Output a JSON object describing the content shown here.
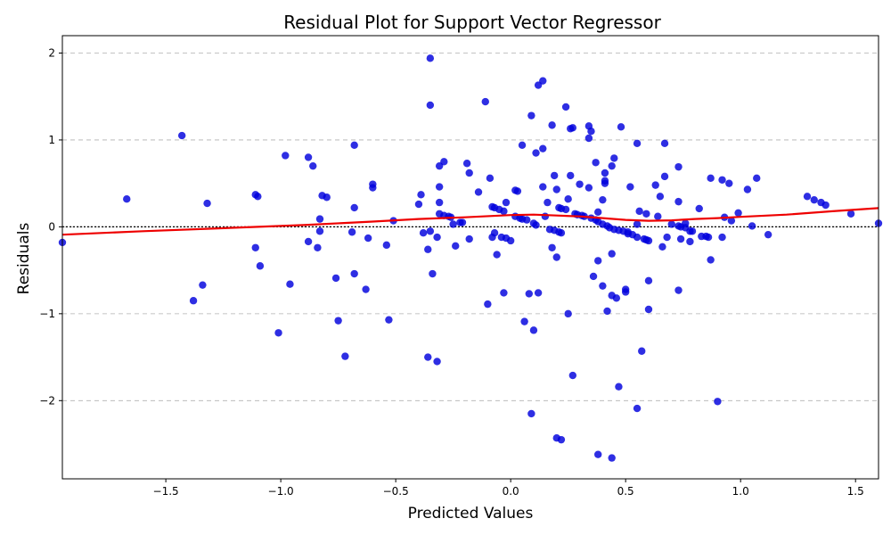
{
  "chart_data": {
    "type": "scatter",
    "title": "Residual Plot for Support Vector Regressor",
    "xlabel": "Predicted Values",
    "ylabel": "Residuals",
    "xlim": [
      -1.95,
      1.6
    ],
    "ylim": [
      -2.9,
      2.2
    ],
    "xticks": [
      -1.5,
      -1.0,
      -0.5,
      0.0,
      0.5,
      1.0,
      1.5
    ],
    "xtick_labels": [
      "−1.5",
      "−1.0",
      "−0.5",
      "0.0",
      "0.5",
      "1.0",
      "1.5"
    ],
    "yticks": [
      -2,
      -1,
      0,
      1,
      2
    ],
    "ytick_labels": [
      "−2",
      "−1",
      "0",
      "1",
      "2"
    ],
    "grid": "y-dashed",
    "point_color": "#0000dd",
    "trend_color": "#ee0000",
    "zero_line_color": "#000000",
    "points": [
      [
        -1.95,
        -0.18
      ],
      [
        -1.67,
        0.32
      ],
      [
        -1.43,
        1.05
      ],
      [
        -1.38,
        -0.85
      ],
      [
        -1.34,
        -0.67
      ],
      [
        -1.32,
        0.27
      ],
      [
        -1.11,
        0.37
      ],
      [
        -1.1,
        0.35
      ],
      [
        -1.11,
        -0.24
      ],
      [
        -1.09,
        -0.45
      ],
      [
        -1.01,
        -1.22
      ],
      [
        -0.98,
        0.82
      ],
      [
        -0.96,
        -0.66
      ],
      [
        -0.88,
        0.8
      ],
      [
        -0.86,
        0.7
      ],
      [
        -0.88,
        -0.17
      ],
      [
        -0.83,
        0.09
      ],
      [
        -0.83,
        -0.05
      ],
      [
        -0.84,
        -0.24
      ],
      [
        -0.82,
        0.36
      ],
      [
        -0.8,
        0.34
      ],
      [
        -0.76,
        -0.59
      ],
      [
        -0.75,
        -1.08
      ],
      [
        -0.72,
        -1.49
      ],
      [
        -0.68,
        0.94
      ],
      [
        -0.68,
        0.22
      ],
      [
        -0.69,
        -0.06
      ],
      [
        -0.68,
        -0.54
      ],
      [
        -0.63,
        -0.72
      ],
      [
        -0.62,
        -0.13
      ],
      [
        -0.6,
        0.49
      ],
      [
        -0.6,
        0.45
      ],
      [
        -0.54,
        -0.21
      ],
      [
        -0.53,
        -1.07
      ],
      [
        -0.51,
        0.07
      ],
      [
        -0.4,
        0.26
      ],
      [
        -0.39,
        0.37
      ],
      [
        -0.38,
        -0.07
      ],
      [
        -0.36,
        -0.26
      ],
      [
        -0.36,
        -1.5
      ],
      [
        -0.35,
        1.94
      ],
      [
        -0.35,
        1.4
      ],
      [
        -0.35,
        -0.05
      ],
      [
        -0.34,
        -0.54
      ],
      [
        -0.32,
        -0.12
      ],
      [
        -0.32,
        -1.55
      ],
      [
        -0.31,
        0.46
      ],
      [
        -0.31,
        0.28
      ],
      [
        -0.31,
        0.15
      ],
      [
        -0.31,
        0.7
      ],
      [
        -0.29,
        0.75
      ],
      [
        -0.29,
        0.13
      ],
      [
        -0.27,
        0.12
      ],
      [
        -0.26,
        0.11
      ],
      [
        -0.25,
        0.03
      ],
      [
        -0.24,
        -0.22
      ],
      [
        -0.22,
        0.05
      ],
      [
        -0.21,
        0.05
      ],
      [
        -0.19,
        0.73
      ],
      [
        -0.18,
        0.62
      ],
      [
        -0.18,
        -0.14
      ],
      [
        -0.14,
        0.4
      ],
      [
        -0.11,
        1.44
      ],
      [
        -0.1,
        -0.89
      ],
      [
        -0.09,
        0.56
      ],
      [
        -0.08,
        0.23
      ],
      [
        -0.07,
        0.22
      ],
      [
        -0.08,
        -0.12
      ],
      [
        -0.07,
        -0.07
      ],
      [
        -0.06,
        -0.32
      ],
      [
        -0.05,
        0.2
      ],
      [
        -0.04,
        -0.12
      ],
      [
        -0.03,
        -0.76
      ],
      [
        -0.02,
        0.28
      ],
      [
        -0.03,
        0.18
      ],
      [
        -0.02,
        -0.13
      ],
      [
        0.0,
        -0.16
      ],
      [
        0.02,
        0.42
      ],
      [
        0.03,
        0.41
      ],
      [
        0.02,
        0.12
      ],
      [
        0.04,
        0.1
      ],
      [
        0.05,
        0.94
      ],
      [
        0.05,
        0.09
      ],
      [
        0.07,
        0.08
      ],
      [
        0.06,
        -1.09
      ],
      [
        0.08,
        -0.77
      ],
      [
        0.09,
        1.28
      ],
      [
        0.09,
        -2.15
      ],
      [
        0.1,
        -1.19
      ],
      [
        0.11,
        0.85
      ],
      [
        0.1,
        0.04
      ],
      [
        0.11,
        0.02
      ],
      [
        0.12,
        1.63
      ],
      [
        0.12,
        -0.76
      ],
      [
        0.14,
        1.68
      ],
      [
        0.14,
        0.9
      ],
      [
        0.14,
        0.46
      ],
      [
        0.15,
        0.12
      ],
      [
        0.16,
        0.28
      ],
      [
        0.17,
        -0.03
      ],
      [
        0.18,
        1.17
      ],
      [
        0.18,
        -0.24
      ],
      [
        0.19,
        0.59
      ],
      [
        0.19,
        -0.04
      ],
      [
        0.2,
        -0.35
      ],
      [
        0.2,
        0.43
      ],
      [
        0.21,
        -0.06
      ],
      [
        0.21,
        0.22
      ],
      [
        0.2,
        -2.43
      ],
      [
        0.22,
        -2.45
      ],
      [
        0.22,
        -0.07
      ],
      [
        0.22,
        0.21
      ],
      [
        0.24,
        0.2
      ],
      [
        0.24,
        1.38
      ],
      [
        0.25,
        0.32
      ],
      [
        0.25,
        -1.0
      ],
      [
        0.26,
        0.59
      ],
      [
        0.26,
        1.13
      ],
      [
        0.27,
        1.14
      ],
      [
        0.27,
        -1.71
      ],
      [
        0.28,
        0.15
      ],
      [
        0.29,
        0.14
      ],
      [
        0.3,
        0.49
      ],
      [
        0.31,
        0.13
      ],
      [
        0.32,
        0.12
      ],
      [
        0.34,
        0.45
      ],
      [
        0.34,
        1.16
      ],
      [
        0.35,
        1.1
      ],
      [
        0.34,
        1.02
      ],
      [
        0.35,
        0.1
      ],
      [
        0.36,
        -0.57
      ],
      [
        0.37,
        0.08
      ],
      [
        0.37,
        0.74
      ],
      [
        0.38,
        0.06
      ],
      [
        0.38,
        0.17
      ],
      [
        0.38,
        -0.39
      ],
      [
        0.38,
        -2.62
      ],
      [
        0.4,
        0.31
      ],
      [
        0.4,
        0.03
      ],
      [
        0.41,
        0.62
      ],
      [
        0.41,
        0.5
      ],
      [
        0.41,
        0.53
      ],
      [
        0.4,
        -0.68
      ],
      [
        0.42,
        -0.97
      ],
      [
        0.42,
        0.01
      ],
      [
        0.43,
        -0.01
      ],
      [
        0.44,
        0.7
      ],
      [
        0.44,
        -0.31
      ],
      [
        0.44,
        -0.79
      ],
      [
        0.44,
        -2.66
      ],
      [
        0.45,
        0.79
      ],
      [
        0.45,
        -0.03
      ],
      [
        0.46,
        -0.82
      ],
      [
        0.47,
        -0.04
      ],
      [
        0.47,
        -1.84
      ],
      [
        0.48,
        1.15
      ],
      [
        0.49,
        -0.05
      ],
      [
        0.5,
        -0.75
      ],
      [
        0.5,
        -0.72
      ],
      [
        0.51,
        -0.06
      ],
      [
        0.51,
        -0.08
      ],
      [
        0.52,
        0.46
      ],
      [
        0.53,
        -0.09
      ],
      [
        0.55,
        0.96
      ],
      [
        0.55,
        0.03
      ],
      [
        0.55,
        -0.12
      ],
      [
        0.55,
        -2.09
      ],
      [
        0.56,
        0.18
      ],
      [
        0.57,
        -1.43
      ],
      [
        0.58,
        -0.14
      ],
      [
        0.59,
        0.15
      ],
      [
        0.59,
        -0.15
      ],
      [
        0.6,
        -0.62
      ],
      [
        0.6,
        -0.95
      ],
      [
        0.6,
        -0.16
      ],
      [
        0.63,
        0.48
      ],
      [
        0.64,
        0.12
      ],
      [
        0.65,
        0.35
      ],
      [
        0.66,
        -0.23
      ],
      [
        0.67,
        0.58
      ],
      [
        0.67,
        0.96
      ],
      [
        0.68,
        -0.12
      ],
      [
        0.7,
        0.03
      ],
      [
        0.73,
        0.69
      ],
      [
        0.73,
        0.29
      ],
      [
        0.73,
        0.01
      ],
      [
        0.73,
        -0.73
      ],
      [
        0.74,
        -0.0
      ],
      [
        0.74,
        -0.14
      ],
      [
        0.76,
        0.04
      ],
      [
        0.76,
        -0.01
      ],
      [
        0.78,
        -0.05
      ],
      [
        0.78,
        -0.17
      ],
      [
        0.79,
        -0.05
      ],
      [
        0.82,
        0.21
      ],
      [
        0.83,
        -0.11
      ],
      [
        0.85,
        -0.11
      ],
      [
        0.86,
        -0.12
      ],
      [
        0.87,
        0.56
      ],
      [
        0.87,
        -0.38
      ],
      [
        0.9,
        -2.01
      ],
      [
        0.92,
        0.54
      ],
      [
        0.92,
        -0.12
      ],
      [
        0.93,
        0.11
      ],
      [
        0.95,
        0.5
      ],
      [
        0.96,
        0.07
      ],
      [
        0.99,
        0.16
      ],
      [
        1.03,
        0.43
      ],
      [
        1.05,
        0.01
      ],
      [
        1.07,
        0.56
      ],
      [
        1.12,
        -0.09
      ],
      [
        1.29,
        0.35
      ],
      [
        1.32,
        0.31
      ],
      [
        1.35,
        0.28
      ],
      [
        1.37,
        0.25
      ],
      [
        1.48,
        0.15
      ],
      [
        1.6,
        0.04
      ]
    ],
    "trend": [
      [
        -1.95,
        -0.09
      ],
      [
        -1.6,
        -0.05
      ],
      [
        -1.2,
        -0.01
      ],
      [
        -0.9,
        0.02
      ],
      [
        -0.6,
        0.06
      ],
      [
        -0.4,
        0.09
      ],
      [
        -0.2,
        0.11
      ],
      [
        0.0,
        0.135
      ],
      [
        0.1,
        0.14
      ],
      [
        0.2,
        0.13
      ],
      [
        0.3,
        0.12
      ],
      [
        0.4,
        0.1
      ],
      [
        0.5,
        0.08
      ],
      [
        0.6,
        0.07
      ],
      [
        0.7,
        0.075
      ],
      [
        0.8,
        0.09
      ],
      [
        0.9,
        0.1
      ],
      [
        1.0,
        0.115
      ],
      [
        1.2,
        0.14
      ],
      [
        1.4,
        0.18
      ],
      [
        1.6,
        0.215
      ]
    ]
  }
}
